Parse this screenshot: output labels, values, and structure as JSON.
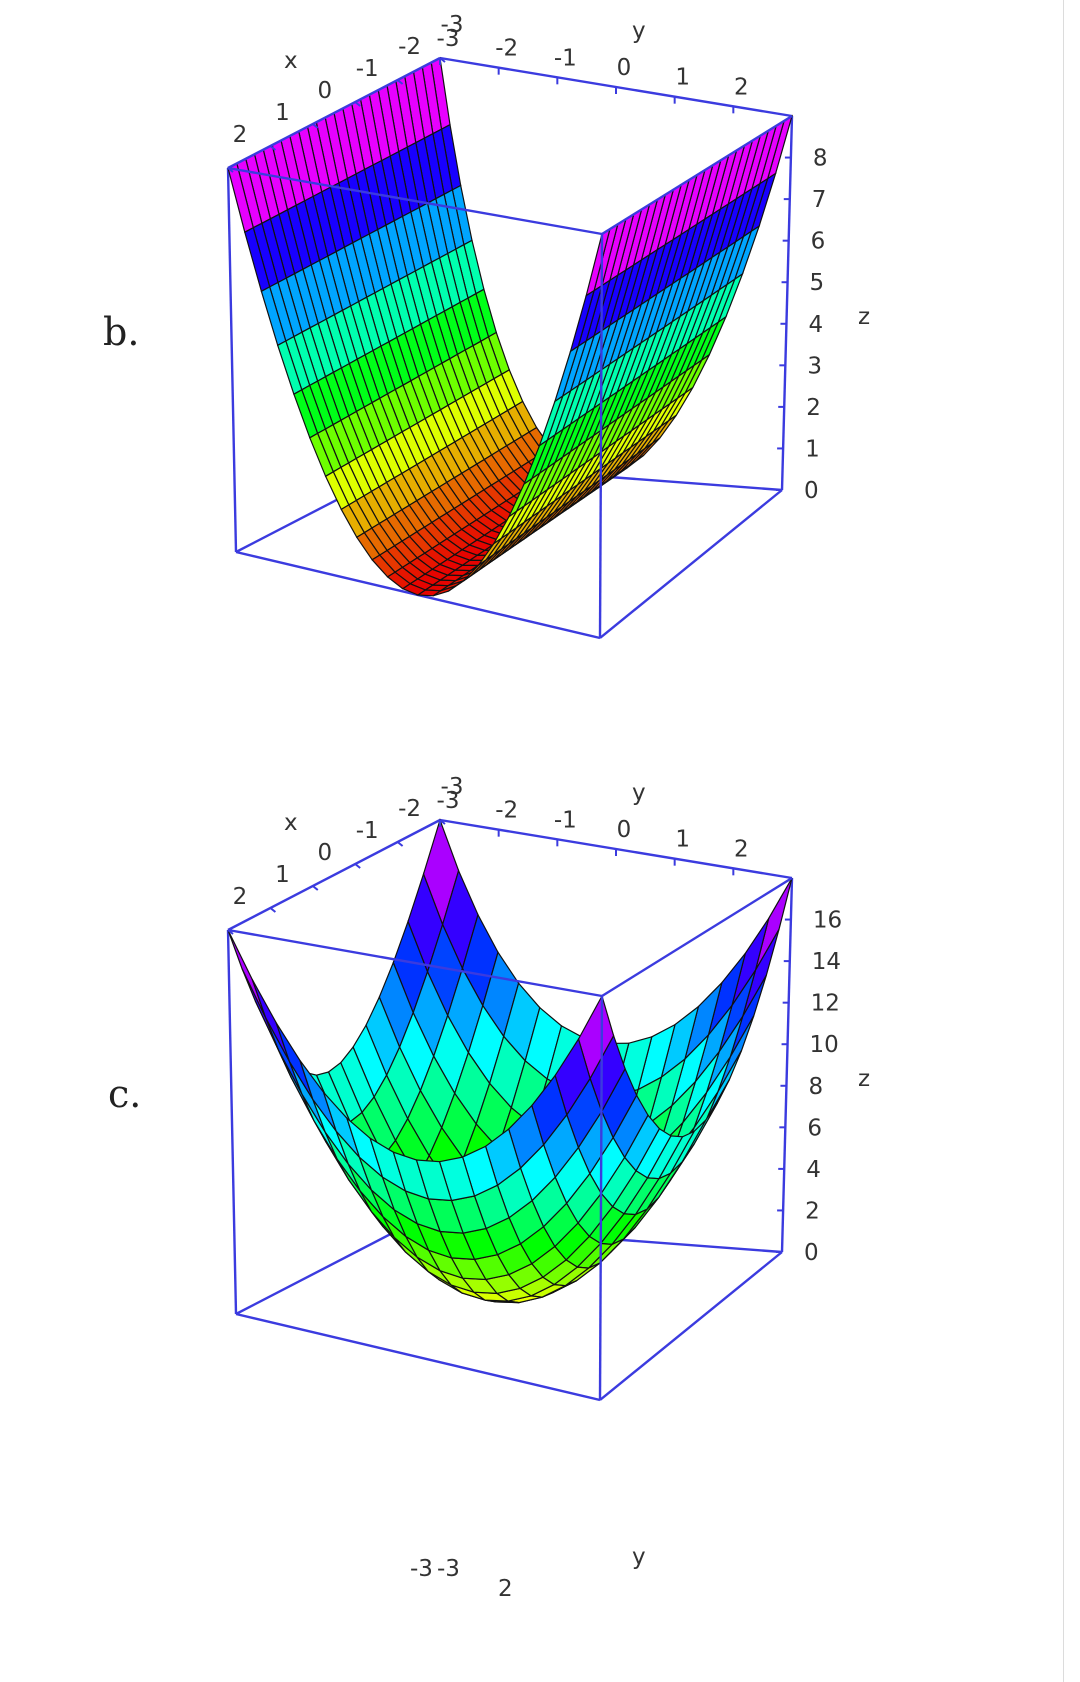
{
  "figures": [
    {
      "label": "b.",
      "chart_data": {
        "type": "surface",
        "function_shape": "parabolic trough varying along x only (constant in y)",
        "xlabel": "x",
        "ylabel": "y",
        "zlabel": "z",
        "x_ticks": [
          "2",
          "1",
          "0",
          "-1",
          "-2",
          "-3"
        ],
        "y_ticks": [
          "-3",
          "-2",
          "-1",
          "0",
          "1",
          "2"
        ],
        "z_ticks": [
          "0",
          "1",
          "2",
          "3",
          "4",
          "5",
          "6",
          "7",
          "8"
        ],
        "xlim": [
          -3,
          3
        ],
        "ylim": [
          -3,
          3
        ],
        "zlim": [
          0,
          9
        ],
        "colormap": "rainbow (red low → yellow → green → cyan → blue → purple → magenta high)",
        "box_color": "#3b3bdf",
        "surface": {
          "z_at_x": {
            "-3": 9,
            "0": 0,
            "3": 9
          },
          "independent_of": "y"
        }
      }
    },
    {
      "label": "c.",
      "chart_data": {
        "type": "surface",
        "function_shape": "paraboloid bowl varying along both x and y",
        "xlabel": "x",
        "ylabel": "y",
        "zlabel": "z",
        "x_ticks": [
          "2",
          "1",
          "0",
          "-1",
          "-2",
          "-3"
        ],
        "y_ticks": [
          "-3",
          "-2",
          "-1",
          "0",
          "1",
          "2"
        ],
        "z_ticks": [
          "0",
          "2",
          "4",
          "6",
          "8",
          "10",
          "12",
          "14",
          "16"
        ],
        "xlim": [
          -3,
          3
        ],
        "ylim": [
          -3,
          3
        ],
        "zlim": [
          0,
          18
        ],
        "colormap": "rainbow (yellow low → green → cyan → blue → purple → magenta high)",
        "box_color": "#3b3bdf",
        "surface": {
          "z_at_corners": 18,
          "z_at_center": 0
        }
      }
    }
  ],
  "partial_figure": {
    "x_ticks": [
      "-3",
      "-3",
      "2"
    ],
    "ylabel": "y"
  }
}
